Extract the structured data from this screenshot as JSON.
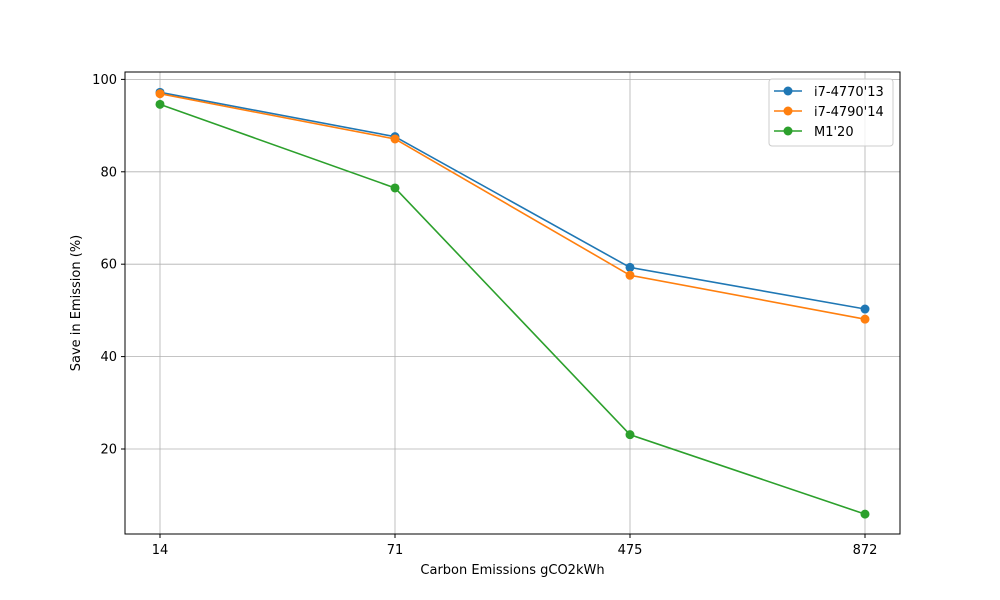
{
  "chart_data": {
    "type": "line",
    "title": "",
    "xlabel": "Carbon Emissions gCO2kWh",
    "ylabel": "Save in Emission (%)",
    "categories": [
      "14",
      "71",
      "475",
      "872"
    ],
    "ylim": [
      1.6,
      101.6
    ],
    "yticks": [
      20,
      40,
      60,
      80,
      100
    ],
    "grid": true,
    "legend_position": "top-right",
    "series": [
      {
        "name": "i7-4770'13",
        "color": "#1f77b4",
        "values": [
          97.2,
          87.6,
          59.3,
          50.3
        ]
      },
      {
        "name": "i7-4790'14",
        "color": "#ff7f0e",
        "values": [
          96.9,
          87.1,
          57.6,
          48.1
        ]
      },
      {
        "name": "M1'20",
        "color": "#2ca02c",
        "values": [
          94.6,
          76.5,
          23.1,
          5.9
        ]
      }
    ]
  }
}
